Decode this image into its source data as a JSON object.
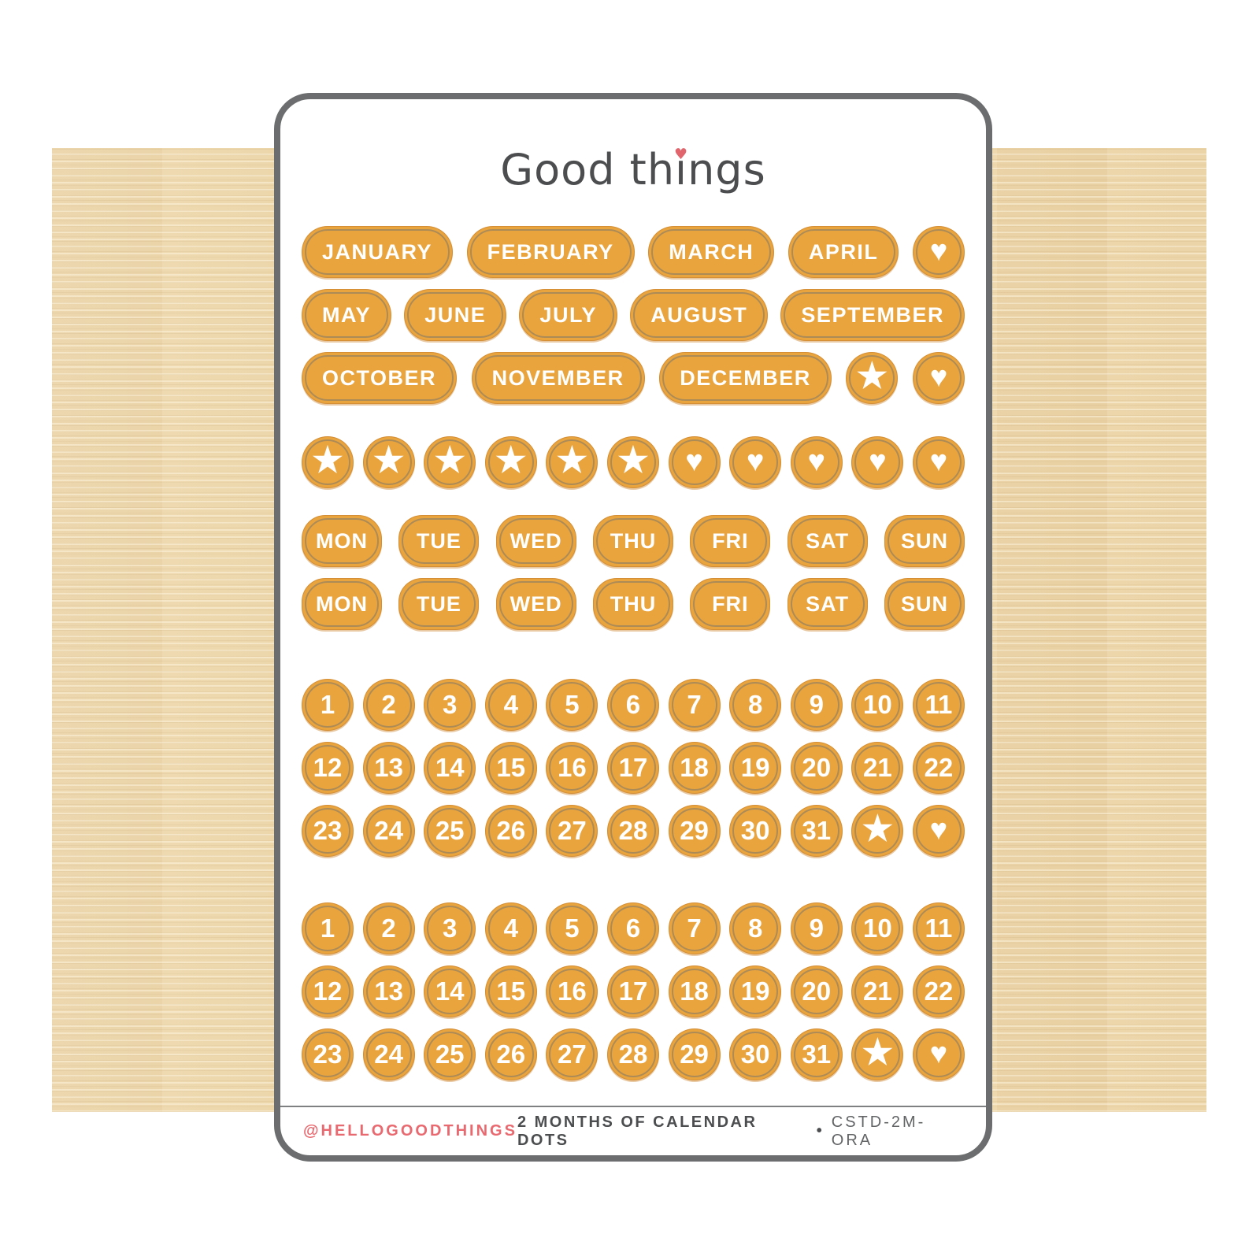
{
  "brand": {
    "part1": "Good th",
    "i_char": "ı",
    "part2": "ngs"
  },
  "icons": {
    "star": "★",
    "heart": "♥"
  },
  "colors": {
    "sticker_orange": "#E9A43E",
    "sticker_rim": "#D18C34",
    "diecut_ring": "#76746E",
    "sheet_border": "#6B6D6E",
    "logo_gray": "#4B4D4F",
    "heart_pink": "#E0656C",
    "footer_pink": "#E8696F",
    "footer_gray": "#4B4D4F",
    "wood_tan": "#ECD5A9"
  },
  "months_rows": [
    [
      {
        "label": "JANUARY"
      },
      {
        "label": "FEBRUARY"
      },
      {
        "label": "MARCH"
      },
      {
        "label": "APRIL"
      },
      {
        "icon": "heart"
      }
    ],
    [
      {
        "label": "MAY"
      },
      {
        "label": "JUNE"
      },
      {
        "label": "JULY"
      },
      {
        "label": "AUGUST"
      },
      {
        "label": "SEPTEMBER"
      }
    ],
    [
      {
        "label": "OCTOBER"
      },
      {
        "label": "NOVEMBER"
      },
      {
        "label": "DECEMBER"
      },
      {
        "icon": "star"
      },
      {
        "icon": "heart"
      }
    ]
  ],
  "symbols_row": [
    {
      "icon": "star"
    },
    {
      "icon": "star"
    },
    {
      "icon": "star"
    },
    {
      "icon": "star"
    },
    {
      "icon": "star"
    },
    {
      "icon": "star"
    },
    {
      "icon": "heart"
    },
    {
      "icon": "heart"
    },
    {
      "icon": "heart"
    },
    {
      "icon": "heart"
    },
    {
      "icon": "heart"
    }
  ],
  "weekday_rows": [
    [
      {
        "label": "MON"
      },
      {
        "label": "TUE"
      },
      {
        "label": "WED"
      },
      {
        "label": "THU"
      },
      {
        "label": "FRI"
      },
      {
        "label": "SAT"
      },
      {
        "label": "SUN"
      }
    ],
    [
      {
        "label": "MON"
      },
      {
        "label": "TUE"
      },
      {
        "label": "WED"
      },
      {
        "label": "THU"
      },
      {
        "label": "FRI"
      },
      {
        "label": "SAT"
      },
      {
        "label": "SUN"
      }
    ]
  ],
  "date_grids": [
    [
      [
        {
          "label": "1"
        },
        {
          "label": "2"
        },
        {
          "label": "3"
        },
        {
          "label": "4"
        },
        {
          "label": "5"
        },
        {
          "label": "6"
        },
        {
          "label": "7"
        },
        {
          "label": "8"
        },
        {
          "label": "9"
        },
        {
          "label": "10"
        },
        {
          "label": "11"
        }
      ],
      [
        {
          "label": "12"
        },
        {
          "label": "13"
        },
        {
          "label": "14"
        },
        {
          "label": "15"
        },
        {
          "label": "16"
        },
        {
          "label": "17"
        },
        {
          "label": "18"
        },
        {
          "label": "19"
        },
        {
          "label": "20"
        },
        {
          "label": "21"
        },
        {
          "label": "22"
        }
      ],
      [
        {
          "label": "23"
        },
        {
          "label": "24"
        },
        {
          "label": "25"
        },
        {
          "label": "26"
        },
        {
          "label": "27"
        },
        {
          "label": "28"
        },
        {
          "label": "29"
        },
        {
          "label": "30"
        },
        {
          "label": "31"
        },
        {
          "icon": "star"
        },
        {
          "icon": "heart"
        }
      ]
    ],
    [
      [
        {
          "label": "1"
        },
        {
          "label": "2"
        },
        {
          "label": "3"
        },
        {
          "label": "4"
        },
        {
          "label": "5"
        },
        {
          "label": "6"
        },
        {
          "label": "7"
        },
        {
          "label": "8"
        },
        {
          "label": "9"
        },
        {
          "label": "10"
        },
        {
          "label": "11"
        }
      ],
      [
        {
          "label": "12"
        },
        {
          "label": "13"
        },
        {
          "label": "14"
        },
        {
          "label": "15"
        },
        {
          "label": "16"
        },
        {
          "label": "17"
        },
        {
          "label": "18"
        },
        {
          "label": "19"
        },
        {
          "label": "20"
        },
        {
          "label": "21"
        },
        {
          "label": "22"
        }
      ],
      [
        {
          "label": "23"
        },
        {
          "label": "24"
        },
        {
          "label": "25"
        },
        {
          "label": "26"
        },
        {
          "label": "27"
        },
        {
          "label": "28"
        },
        {
          "label": "29"
        },
        {
          "label": "30"
        },
        {
          "label": "31"
        },
        {
          "icon": "star"
        },
        {
          "icon": "heart"
        }
      ]
    ]
  ],
  "footer": {
    "handle": "@HELLOGOODTHINGS",
    "product": "2 MONTHS OF CALENDAR DOTS",
    "separator": "•",
    "sku": "CSTD-2M-ORA"
  }
}
